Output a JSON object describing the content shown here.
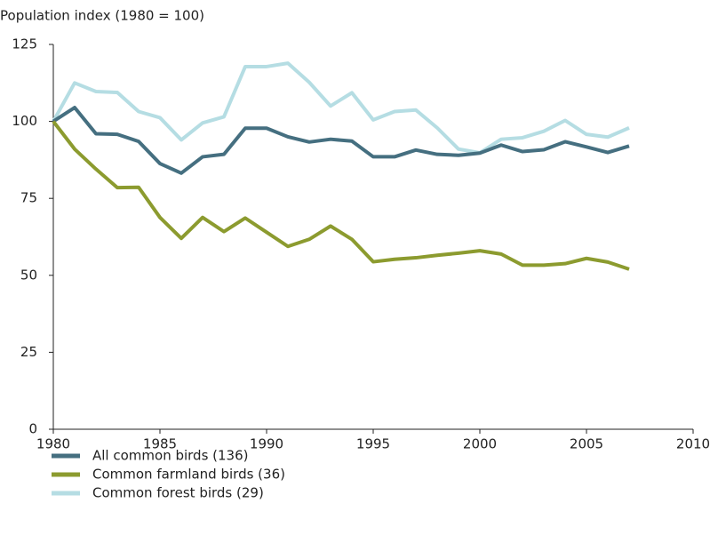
{
  "chart_data": {
    "type": "line",
    "ylabel": "Population index (1980 = 100)",
    "x": [
      1980,
      1981,
      1982,
      1983,
      1984,
      1985,
      1986,
      1987,
      1988,
      1989,
      1990,
      1991,
      1992,
      1993,
      1994,
      1995,
      1996,
      1997,
      1998,
      1999,
      2000,
      2001,
      2002,
      2003,
      2004,
      2005,
      2006,
      2007
    ],
    "series": [
      {
        "name": "All common birds (136)",
        "color": "#456f80",
        "values": [
          100,
          104.5,
          96,
          95.8,
          93.5,
          86.3,
          83.2,
          88.5,
          89.3,
          97.8,
          97.8,
          95,
          93.3,
          94.2,
          93.6,
          88.5,
          88.5,
          90.7,
          89.3,
          89,
          89.7,
          92.3,
          90.2,
          90.8,
          93.4,
          91.7,
          89.9,
          92
        ]
      },
      {
        "name": "Common farmland birds (36)",
        "color": "#8c9b2f",
        "values": [
          100,
          91,
          84.5,
          78.5,
          78.6,
          68.8,
          62,
          68.8,
          64.2,
          68.6,
          64,
          59.4,
          61.7,
          66,
          61.7,
          54.4,
          55.2,
          55.7,
          56.5,
          57.2,
          58,
          56.9,
          53.3,
          53.3,
          53.8,
          55.5,
          54.3,
          52
        ]
      },
      {
        "name": "Common forest birds (29)",
        "color": "#b5dde3",
        "values": [
          100,
          112.5,
          109.7,
          109.4,
          103.2,
          101.2,
          94,
          99.5,
          101.5,
          117.8,
          117.8,
          118.9,
          112.7,
          105,
          109.3,
          100.5,
          103.2,
          103.7,
          97.9,
          91,
          89.8,
          94.2,
          94.7,
          96.8,
          100.3,
          95.8,
          94.9,
          97.9
        ]
      }
    ],
    "xlim": [
      1980,
      2010
    ],
    "xticks": [
      1980,
      1985,
      1990,
      1995,
      2000,
      2005,
      2010
    ],
    "ylim": [
      0,
      125
    ],
    "yticks": [
      0,
      25,
      50,
      75,
      100,
      125
    ]
  }
}
